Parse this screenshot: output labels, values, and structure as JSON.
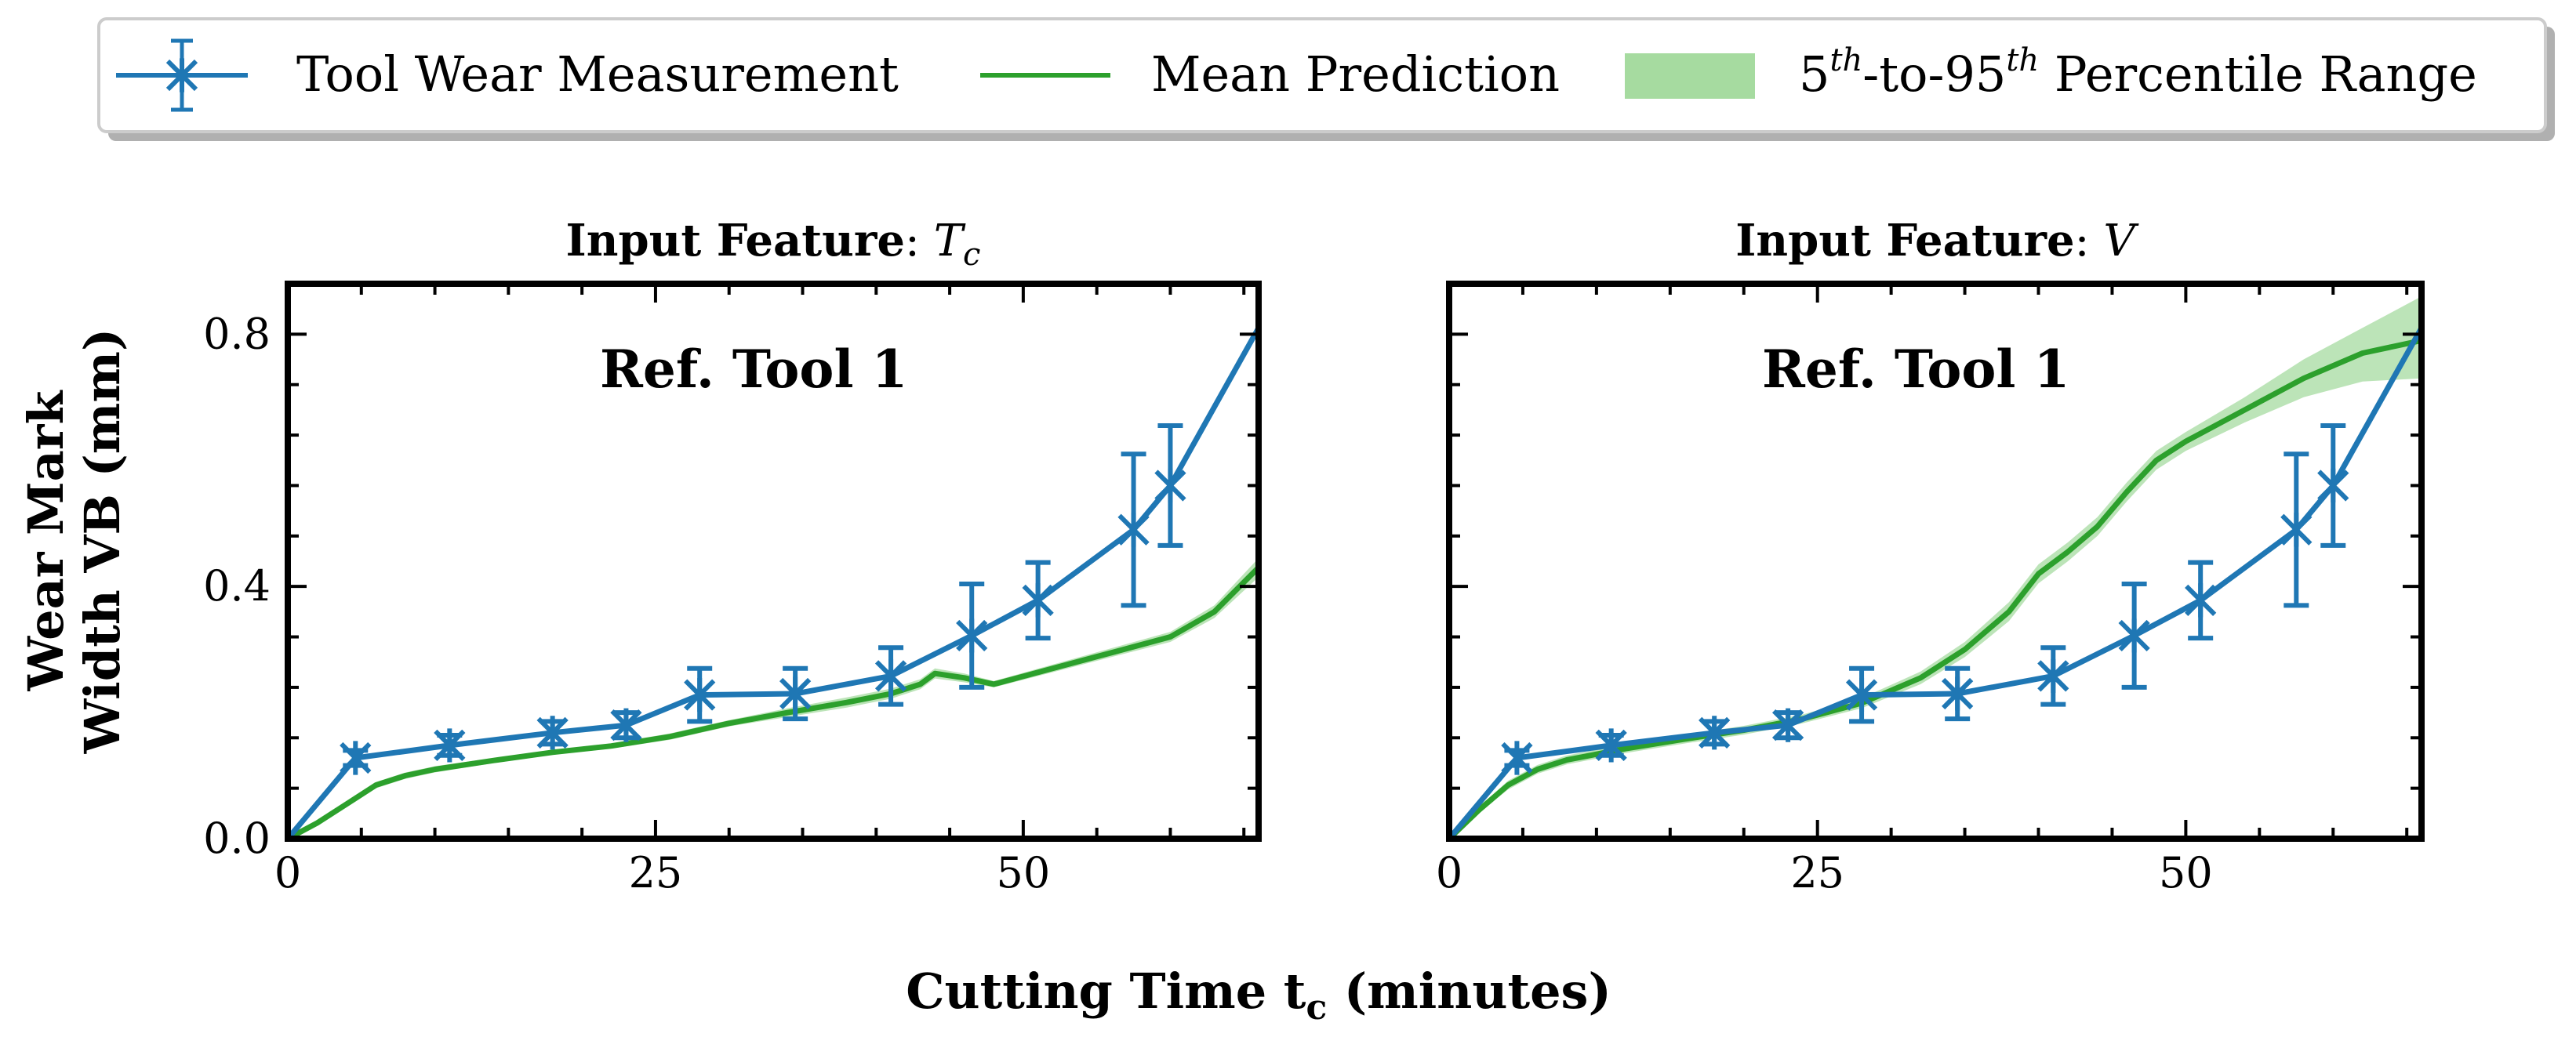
{
  "colors": {
    "measurement": "#1f77b4",
    "prediction": "#2ca02c",
    "band": "#a6dba0"
  },
  "legend": {
    "measurement": "Tool Wear Measurement",
    "prediction": "Mean Prediction",
    "band_sup1": "th",
    "band_mid": "-to-95",
    "band_sup2": "th",
    "band_tail": " Percentile Range",
    "band_lead": "5"
  },
  "axes": {
    "ylabel_line1": "Wear Mark",
    "ylabel_line2": "Width VB (mm)",
    "xlabel_main": "Cutting Time t",
    "xlabel_sub": "c",
    "xlabel_tail": " (minutes)"
  },
  "chart_data": [
    {
      "type": "line",
      "title_bold": "Input Feature",
      "title_sep": ": ",
      "title_var": "T",
      "title_var_sub": "c",
      "annotation": "Ref. Tool 1",
      "xlim": [
        0,
        66
      ],
      "ylim": [
        0,
        0.88
      ],
      "xticks": [
        0,
        25,
        50
      ],
      "xtick_labels": [
        "0",
        "25",
        "50"
      ],
      "yticks": [
        0.0,
        0.4,
        0.8
      ],
      "ytick_labels": [
        "0.0",
        "0.4",
        "0.8"
      ],
      "measurement": {
        "name": "Tool Wear Measurement",
        "x": [
          0,
          4.6,
          11,
          18,
          23,
          28,
          34.5,
          41,
          46.5,
          51,
          57.5,
          60,
          66
        ],
        "y": [
          0.0,
          0.128,
          0.148,
          0.168,
          0.18,
          0.228,
          0.23,
          0.258,
          0.322,
          0.378,
          0.49,
          0.56,
          0.81
        ],
        "err": [
          0,
          0.012,
          0.016,
          0.018,
          0.02,
          0.042,
          0.04,
          0.045,
          0.082,
          0.06,
          0.12,
          0.095,
          0
        ],
        "markers": [
          false,
          true,
          true,
          true,
          true,
          true,
          true,
          true,
          true,
          true,
          true,
          true,
          false
        ]
      },
      "prediction": {
        "name": "Mean Prediction",
        "x": [
          0,
          2,
          4,
          6,
          8,
          10,
          14,
          18,
          22,
          26,
          30,
          34,
          38,
          41,
          43,
          44,
          46,
          48,
          52,
          56,
          60,
          63,
          66
        ],
        "y": [
          0.0,
          0.025,
          0.055,
          0.085,
          0.1,
          0.11,
          0.124,
          0.137,
          0.147,
          0.162,
          0.183,
          0.2,
          0.216,
          0.23,
          0.245,
          0.262,
          0.255,
          0.245,
          0.27,
          0.295,
          0.32,
          0.36,
          0.43
        ],
        "lower": [
          0.0,
          0.02,
          0.05,
          0.08,
          0.095,
          0.105,
          0.12,
          0.133,
          0.143,
          0.157,
          0.178,
          0.193,
          0.208,
          0.222,
          0.237,
          0.254,
          0.248,
          0.24,
          0.264,
          0.288,
          0.312,
          0.35,
          0.415
        ],
        "upper": [
          0.0,
          0.03,
          0.06,
          0.09,
          0.105,
          0.115,
          0.128,
          0.141,
          0.151,
          0.167,
          0.188,
          0.207,
          0.224,
          0.238,
          0.253,
          0.27,
          0.262,
          0.25,
          0.276,
          0.302,
          0.328,
          0.37,
          0.445
        ]
      }
    },
    {
      "type": "line",
      "title_bold": "Input Feature",
      "title_sep": ": ",
      "title_var": "V",
      "title_var_sub": "",
      "annotation": "Ref. Tool 1",
      "xlim": [
        0,
        66
      ],
      "ylim": [
        0,
        0.88
      ],
      "xticks": [
        0,
        25,
        50
      ],
      "xtick_labels": [
        "0",
        "25",
        "50"
      ],
      "yticks": [
        0.0,
        0.4,
        0.8
      ],
      "ytick_labels": [
        "",
        "",
        ""
      ],
      "measurement": {
        "name": "Tool Wear Measurement",
        "x": [
          0,
          4.6,
          11,
          18,
          23,
          28,
          34.5,
          41,
          46.5,
          51,
          57.5,
          60,
          66
        ],
        "y": [
          0.0,
          0.128,
          0.148,
          0.168,
          0.18,
          0.228,
          0.23,
          0.258,
          0.322,
          0.378,
          0.49,
          0.56,
          0.81
        ],
        "err": [
          0,
          0.012,
          0.016,
          0.018,
          0.02,
          0.042,
          0.04,
          0.045,
          0.082,
          0.06,
          0.12,
          0.095,
          0
        ],
        "markers": [
          false,
          true,
          true,
          true,
          true,
          true,
          true,
          true,
          true,
          true,
          true,
          true,
          false
        ]
      },
      "prediction": {
        "name": "Mean Prediction",
        "x": [
          0,
          2,
          4,
          6,
          8,
          12,
          16,
          20,
          24,
          28,
          32,
          35,
          38,
          40,
          42,
          44,
          46,
          48,
          50,
          54,
          58,
          62,
          66
        ],
        "y": [
          0.0,
          0.045,
          0.085,
          0.11,
          0.125,
          0.143,
          0.158,
          0.172,
          0.19,
          0.215,
          0.255,
          0.3,
          0.36,
          0.42,
          0.455,
          0.495,
          0.55,
          0.6,
          0.63,
          0.68,
          0.73,
          0.77,
          0.79
        ],
        "lower": [
          0.0,
          0.04,
          0.078,
          0.103,
          0.118,
          0.136,
          0.151,
          0.165,
          0.183,
          0.207,
          0.245,
          0.288,
          0.345,
          0.405,
          0.44,
          0.48,
          0.535,
          0.585,
          0.615,
          0.66,
          0.7,
          0.725,
          0.73
        ],
        "upper": [
          0.0,
          0.05,
          0.092,
          0.117,
          0.132,
          0.15,
          0.165,
          0.179,
          0.197,
          0.223,
          0.265,
          0.312,
          0.375,
          0.435,
          0.47,
          0.51,
          0.565,
          0.615,
          0.645,
          0.7,
          0.76,
          0.81,
          0.86
        ]
      }
    }
  ]
}
